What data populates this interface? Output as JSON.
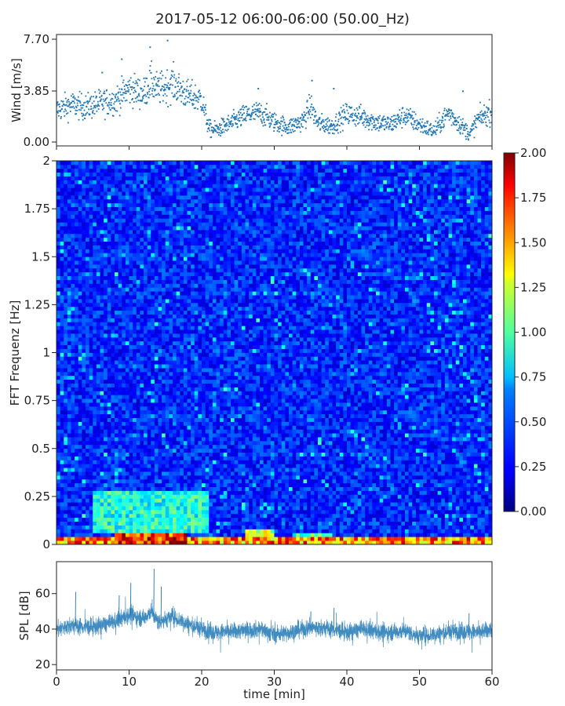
{
  "chart_data": [
    {
      "type": "scatter",
      "title": "2017-05-12 06:00-06:00 (50.00_Hz)",
      "ylabel": "Wind [m/s]",
      "xlabel": "",
      "xlim": [
        0,
        60
      ],
      "ylim": [
        0,
        7.7
      ],
      "yticks": [
        "0.00",
        "3.85",
        "7.70"
      ],
      "series_color": "#1f77b4",
      "x_step": 0.04,
      "envelope_x": [
        0,
        2,
        4,
        6,
        8,
        10,
        12,
        13,
        14,
        16,
        18,
        20,
        21,
        22,
        24,
        26,
        28,
        30,
        32,
        34,
        35,
        36,
        38,
        40,
        42,
        44,
        46,
        48,
        50,
        52,
        54,
        56,
        57,
        58,
        60
      ],
      "envelope_y": [
        2.4,
        2.8,
        2.6,
        2.9,
        3.1,
        4.0,
        3.6,
        4.5,
        3.9,
        4.4,
        3.5,
        3.2,
        1.0,
        0.9,
        1.4,
        2.0,
        2.2,
        1.5,
        1.1,
        1.6,
        2.7,
        1.4,
        1.2,
        2.1,
        1.9,
        1.5,
        1.3,
        2.0,
        1.3,
        0.8,
        2.2,
        1.1,
        0.6,
        1.7,
        2.3
      ],
      "peaks": [
        [
          15.3,
          7.6
        ],
        [
          12.9,
          7.1
        ],
        [
          9.0,
          6.2
        ],
        [
          6.3,
          5.2
        ],
        [
          35.2,
          4.6
        ],
        [
          27.8,
          4.0
        ],
        [
          38.2,
          4.0
        ],
        [
          56.0,
          3.8
        ]
      ]
    },
    {
      "type": "heatmap",
      "ylabel": "FFT Frequenz [Hz]",
      "xlim": [
        0,
        60
      ],
      "ylim": [
        0,
        2
      ],
      "yticks": [
        "0",
        "0.25",
        "0.5",
        "0.75",
        "1",
        "1.25",
        "1.5",
        "1.75",
        "2"
      ],
      "colormap": "jet",
      "vmin": 0,
      "vmax": 2,
      "colorbar_ticks": [
        "0.00",
        "0.25",
        "0.50",
        "0.75",
        "1.00",
        "1.25",
        "1.50",
        "1.75",
        "2.00"
      ],
      "n_time_bins": 120,
      "n_freq_bins": 100,
      "background_level": 0.32,
      "low_freq_hotspots": [
        {
          "t": [
            0,
            60
          ],
          "f": [
            0,
            0.03
          ],
          "level": 1.65
        },
        {
          "t": [
            8,
            18
          ],
          "f": [
            0,
            0.06
          ],
          "level": 1.9
        },
        {
          "t": [
            5,
            21
          ],
          "f": [
            0.06,
            0.28
          ],
          "level": 0.9
        },
        {
          "t": [
            26,
            30
          ],
          "f": [
            0,
            0.08
          ],
          "level": 1.2
        },
        {
          "t": [
            33,
            38
          ],
          "f": [
            0,
            0.05
          ],
          "level": 0.95
        }
      ]
    },
    {
      "type": "line",
      "ylabel": "SPL [dB]",
      "xlabel": "time [min]",
      "xlim": [
        0,
        60
      ],
      "ylim": [
        17,
        78
      ],
      "yticks": [
        20,
        40,
        60
      ],
      "xticks": [
        0,
        10,
        20,
        30,
        40,
        50,
        60
      ],
      "series_color": "#1f77b4",
      "envelope_x": [
        0,
        2,
        5,
        8,
        10,
        12,
        13,
        14,
        16,
        18,
        20,
        22,
        25,
        28,
        30,
        32,
        35,
        38,
        40,
        42,
        45,
        48,
        50,
        52,
        55,
        58,
        60
      ],
      "envelope_y": [
        40,
        42,
        41,
        44,
        48,
        46,
        50,
        44,
        47,
        43,
        40,
        38,
        39,
        40,
        37,
        38,
        41,
        40,
        38,
        40,
        38,
        39,
        36,
        37,
        39,
        38,
        40
      ],
      "peaks": [
        [
          13.4,
          74
        ],
        [
          10.2,
          66
        ],
        [
          8.6,
          59
        ],
        [
          14.4,
          64
        ],
        [
          2.6,
          61
        ],
        [
          38.2,
          52
        ],
        [
          35.0,
          50
        ],
        [
          56.8,
          49
        ]
      ]
    }
  ]
}
